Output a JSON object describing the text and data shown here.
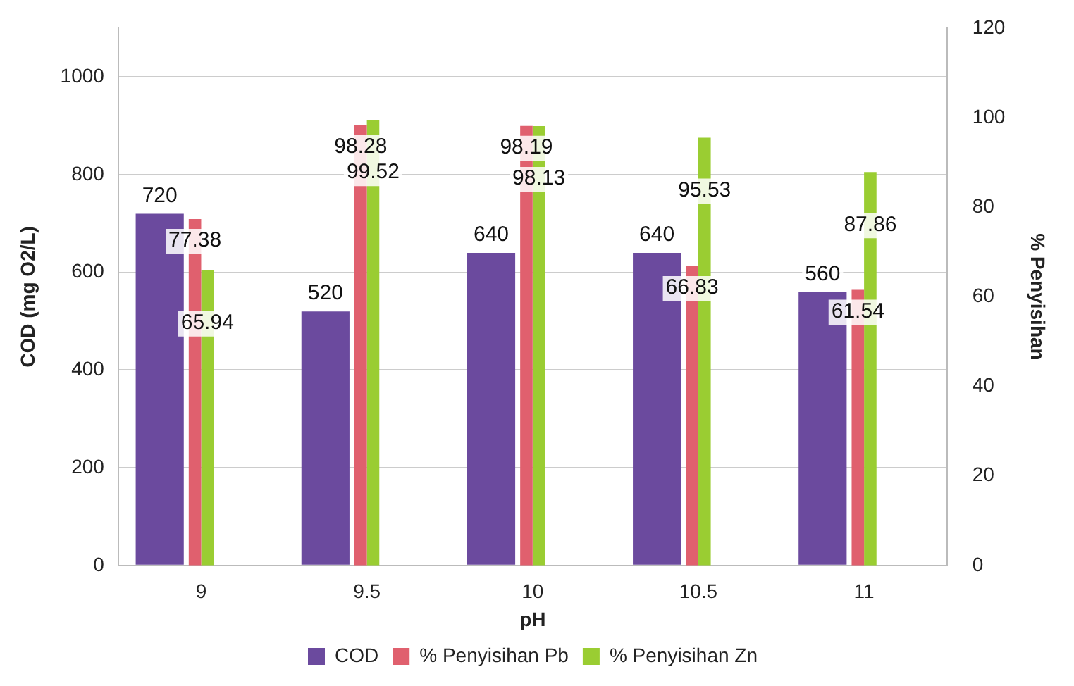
{
  "chart_data": {
    "type": "bar",
    "xlabel": "pH",
    "ylabel": "COD (mg O2/L)",
    "y2label": "% Penyisihan",
    "categories": [
      "9",
      "9.5",
      "10",
      "10.5",
      "11"
    ],
    "series": [
      {
        "name": "COD",
        "color": "#6b4a9e",
        "values": [
          720,
          520,
          640,
          640,
          560
        ]
      },
      {
        "name": "% Penyisihan Pb",
        "color": "#e0606e",
        "values": [
          77.38,
          98.28,
          98.19,
          66.83,
          61.54
        ],
        "axis": "y2"
      },
      {
        "name": "% Penyisihan Zn",
        "color": "#9acd32",
        "values": [
          65.94,
          99.52,
          98.13,
          95.53,
          87.86
        ],
        "axis": "y2"
      }
    ],
    "ylim": [
      0,
      1100
    ],
    "yticks": [
      0,
      200,
      400,
      600,
      800,
      1000
    ],
    "y2lim": [
      0,
      120
    ],
    "y2ticks": [
      0,
      20,
      40,
      60,
      80,
      100,
      120
    ],
    "grid": "y",
    "legend": "bottom",
    "data_labels": true
  }
}
